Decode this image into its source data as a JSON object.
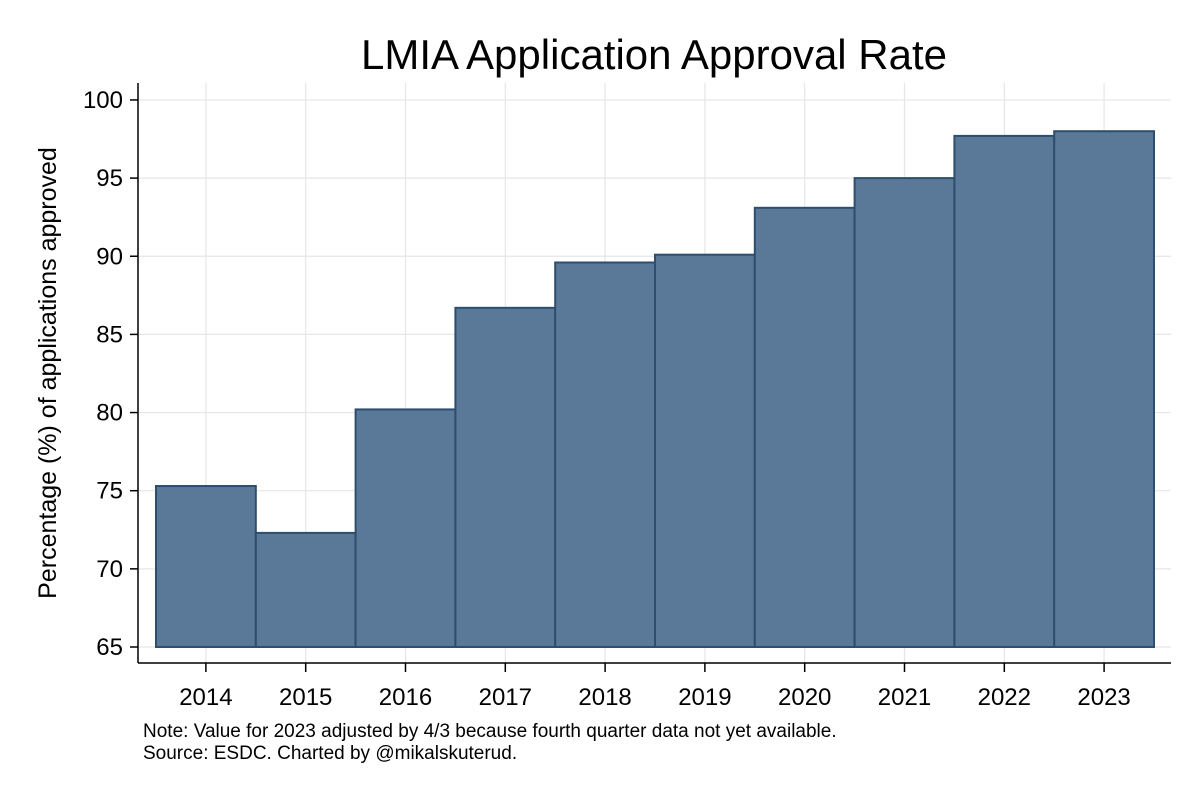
{
  "chart_data": {
    "type": "bar",
    "title": "LMIA Application Approval Rate",
    "xlabel": "",
    "ylabel": "Percentage (%) of applications approved",
    "categories": [
      "2014",
      "2015",
      "2016",
      "2017",
      "2018",
      "2019",
      "2020",
      "2021",
      "2022",
      "2023"
    ],
    "values": [
      75.3,
      72.3,
      80.2,
      86.7,
      89.6,
      90.1,
      93.1,
      95.0,
      97.7,
      98.0
    ],
    "ylim": [
      65,
      100
    ],
    "yticks": [
      65,
      70,
      75,
      80,
      85,
      90,
      95,
      100
    ],
    "ytick_labels": [
      "65",
      "70",
      "75",
      "80",
      "85",
      "90",
      "95",
      "100"
    ],
    "grid": true,
    "legend": "none",
    "bar_color": "#5a7897",
    "bar_edge_color": "#2e4e6e",
    "grid_color": "#e6e6e6"
  },
  "notes": {
    "line1": "Note: Value for 2023 adjusted by 4/3 because fourth quarter data not yet available.",
    "line2": "Source: ESDC. Charted by @mikalskuterud."
  }
}
